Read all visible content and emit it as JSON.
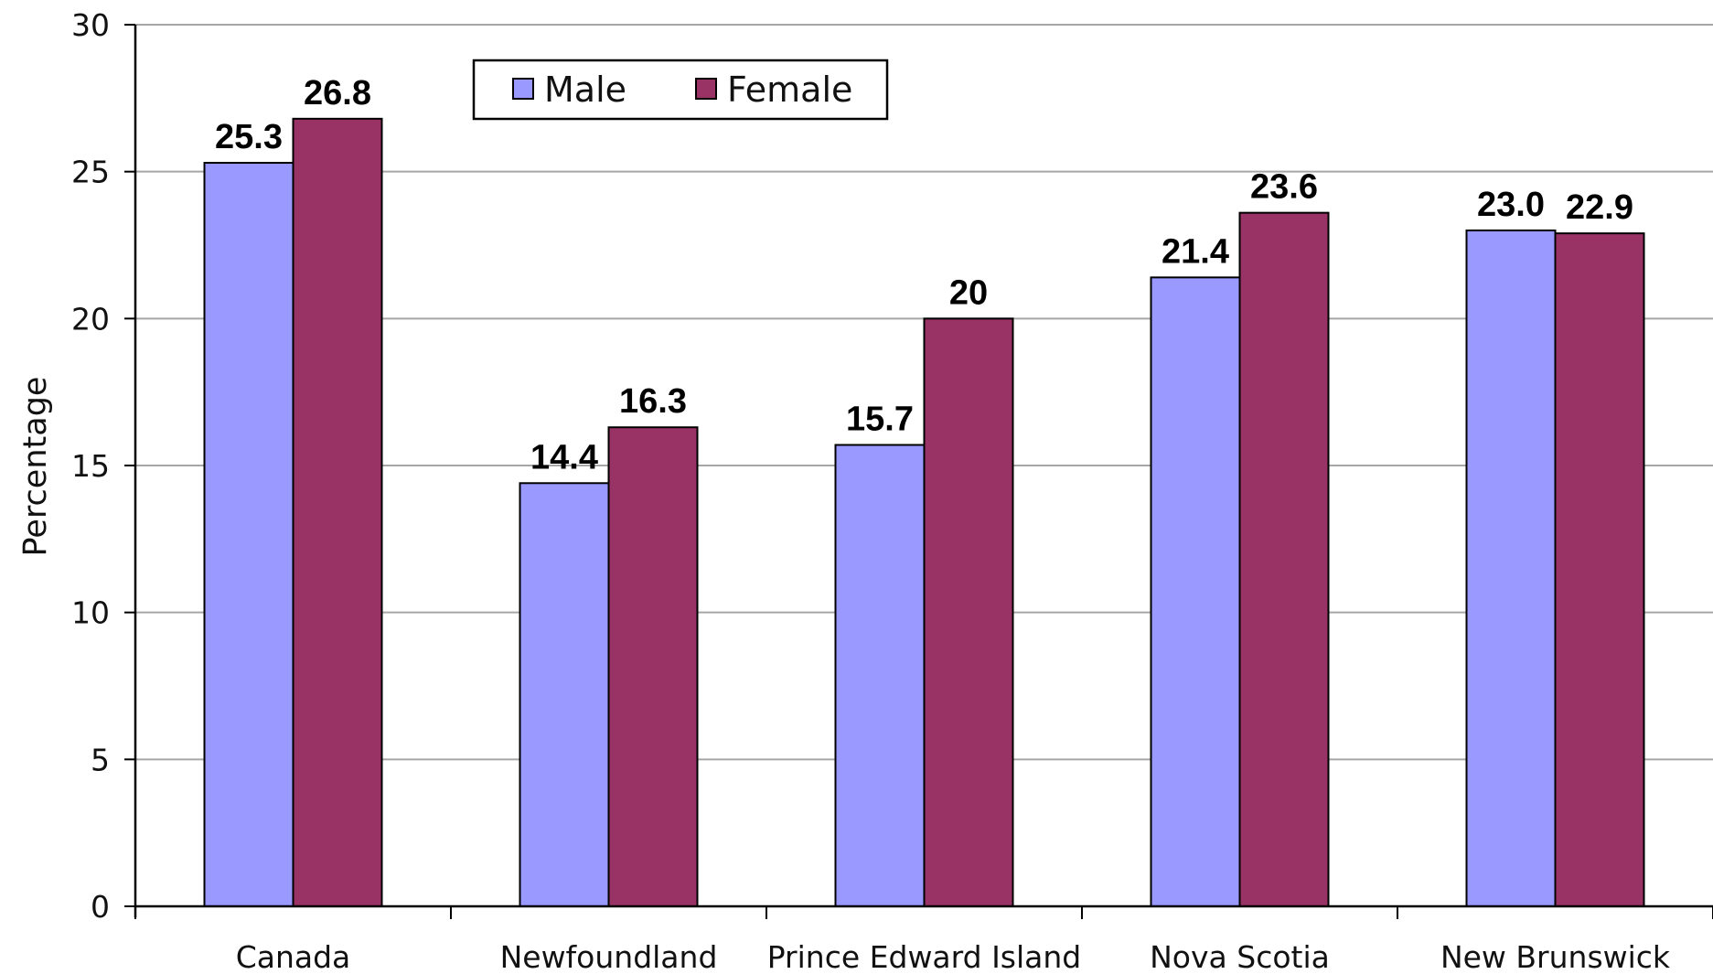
{
  "chart_data": {
    "type": "bar",
    "title": "",
    "xlabel": "",
    "ylabel": "Percentage",
    "ylim": [
      0,
      30
    ],
    "yticks": [
      0,
      5,
      10,
      15,
      20,
      25,
      30
    ],
    "grid": "horizontal",
    "legend_position": "top",
    "categories": [
      "Canada",
      "Newfoundland",
      "Prince Edward Island",
      "Nova Scotia",
      "New Brunswick"
    ],
    "series": [
      {
        "name": "Male",
        "color": "#9999ff",
        "values": [
          25.3,
          14.4,
          15.7,
          21.4,
          23.0
        ],
        "labels": [
          "25.3",
          "14.4",
          "15.7",
          "21.4",
          "23.0"
        ]
      },
      {
        "name": "Female",
        "color": "#993366",
        "values": [
          26.8,
          16.3,
          20,
          23.6,
          22.9
        ],
        "labels": [
          "26.8",
          "16.3",
          "20",
          "23.6",
          "22.9"
        ]
      }
    ]
  }
}
